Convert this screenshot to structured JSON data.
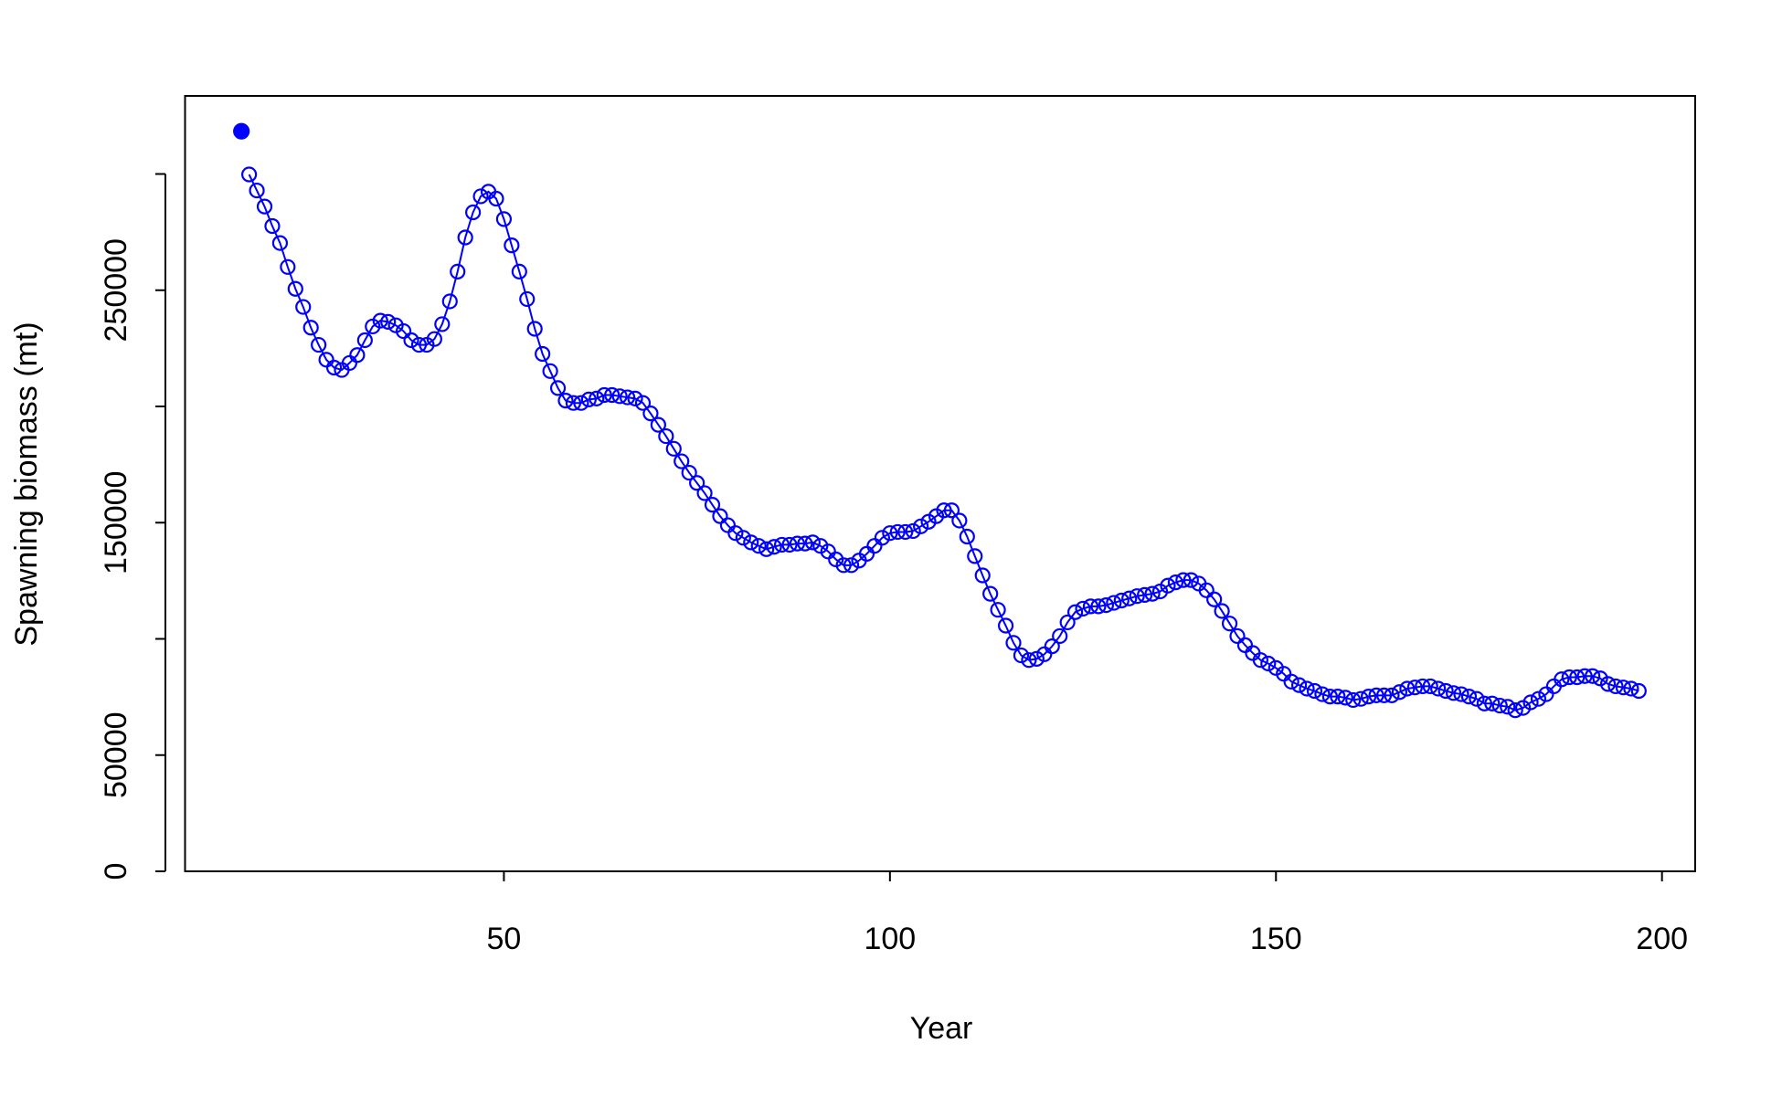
{
  "chart_data": {
    "type": "line",
    "x_label": "Year",
    "y_label": "Spawning biomass (mt)",
    "xlim": [
      8.7,
      204.3
    ],
    "ylim": [
      0,
      333600
    ],
    "xticks": [
      50,
      100,
      150,
      200
    ],
    "yticks": [
      0,
      50000,
      150000,
      250000
    ],
    "yminor_ticks": [
      100000,
      200000,
      300000
    ],
    "series": [
      {
        "color": "#0000ff",
        "marker": "filled",
        "line": false,
        "x": [
          16
        ],
        "values": [
          318400
        ]
      },
      {
        "color": "#0000ff",
        "marker": "open",
        "line": true,
        "x": [
          17,
          18,
          19,
          20,
          21,
          22,
          23,
          24,
          25,
          26,
          27,
          28,
          29,
          30,
          31,
          32,
          33,
          34,
          35,
          36,
          37,
          38,
          39,
          40,
          41,
          42,
          43,
          44,
          45,
          46,
          47,
          48,
          49,
          50,
          51,
          52,
          53,
          54,
          55,
          56,
          57,
          58,
          59,
          60,
          61,
          62,
          63,
          64,
          65,
          66,
          67,
          68,
          69,
          70,
          71,
          72,
          73,
          74,
          75,
          76,
          77,
          78,
          79,
          80,
          81,
          82,
          83,
          84,
          85,
          86,
          87,
          88,
          89,
          90,
          91,
          92,
          93,
          94,
          95,
          96,
          97,
          98,
          99,
          100,
          101,
          102,
          103,
          104,
          105,
          106,
          107,
          108,
          109,
          110,
          111,
          112,
          113,
          114,
          115,
          116,
          117,
          118,
          119,
          120,
          121,
          122,
          123,
          124,
          125,
          126,
          127,
          128,
          129,
          130,
          131,
          132,
          133,
          134,
          135,
          136,
          137,
          138,
          139,
          140,
          141,
          142,
          143,
          144,
          145,
          146,
          147,
          148,
          149,
          150,
          151,
          152,
          153,
          154,
          155,
          156,
          157,
          158,
          159,
          160,
          161,
          162,
          163,
          164,
          165,
          166,
          167,
          168,
          169,
          170,
          171,
          172,
          173,
          174,
          175,
          176,
          177,
          178,
          179,
          180,
          181,
          182,
          183,
          184,
          185,
          186,
          187,
          188,
          189,
          190,
          191,
          192,
          193,
          194,
          195,
          196,
          197
        ],
        "values": [
          299800,
          292900,
          286000,
          277600,
          270300,
          260000,
          250600,
          242800,
          233900,
          226500,
          220100,
          216700,
          215700,
          218700,
          222100,
          228500,
          234400,
          236900,
          236400,
          234900,
          232400,
          228500,
          226500,
          226500,
          229000,
          235400,
          245200,
          258000,
          272700,
          283500,
          290400,
          292400,
          289400,
          280600,
          269300,
          258000,
          246200,
          233400,
          222600,
          215200,
          207900,
          202500,
          201500,
          201500,
          203000,
          203400,
          204900,
          204900,
          204400,
          203900,
          203400,
          201500,
          197000,
          192100,
          187200,
          181800,
          176400,
          171500,
          167100,
          162700,
          157700,
          152800,
          148900,
          145500,
          143500,
          141500,
          140000,
          138600,
          139600,
          140500,
          140500,
          141000,
          141000,
          141500,
          140000,
          137600,
          134200,
          131700,
          131700,
          133700,
          136600,
          140000,
          143500,
          145500,
          146000,
          146000,
          146400,
          148400,
          150400,
          152800,
          155300,
          155300,
          150900,
          144000,
          135600,
          127300,
          119400,
          112500,
          105700,
          98300,
          92900,
          90900,
          91400,
          93400,
          96800,
          101200,
          107100,
          111500,
          113000,
          114000,
          114000,
          114500,
          115500,
          116500,
          117400,
          118400,
          118900,
          119400,
          120400,
          122900,
          124300,
          125300,
          125300,
          123800,
          120900,
          117000,
          112000,
          106600,
          101200,
          97300,
          93900,
          90900,
          89400,
          87500,
          85000,
          81600,
          80100,
          78600,
          77600,
          76200,
          75200,
          75200,
          74700,
          73700,
          74200,
          75200,
          75700,
          75700,
          75700,
          77100,
          78600,
          79100,
          79600,
          79600,
          78600,
          77600,
          76700,
          76200,
          75200,
          74200,
          72200,
          72200,
          71300,
          70800,
          69300,
          70300,
          72700,
          74200,
          76200,
          79600,
          82600,
          83500,
          83500,
          84000,
          84000,
          83000,
          80600,
          79600,
          79100,
          78600,
          77600
        ]
      }
    ]
  }
}
